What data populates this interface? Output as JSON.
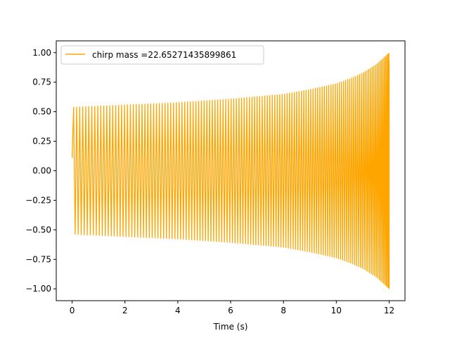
{
  "chart_data": {
    "type": "line",
    "title": "",
    "xlabel": "Time (s)",
    "ylabel": "",
    "xlim": [
      -0.6,
      12.6
    ],
    "ylim": [
      -1.1,
      1.1
    ],
    "x_ticks": [
      0,
      2,
      4,
      6,
      8,
      10,
      12
    ],
    "x_tick_labels": [
      "0",
      "2",
      "4",
      "6",
      "8",
      "10",
      "12"
    ],
    "y_ticks": [
      -1.0,
      -0.75,
      -0.5,
      -0.25,
      0.0,
      0.25,
      0.5,
      0.75,
      1.0
    ],
    "y_tick_labels": [
      "−1.00",
      "−0.75",
      "−0.50",
      "−0.25",
      "0.00",
      "0.25",
      "0.50",
      "0.75",
      "1.00"
    ],
    "grid": false,
    "legend_position": "top-left",
    "series": [
      {
        "name": "chirp mass =22.65271435899861",
        "color": "#ffa500",
        "envelope": {
          "t": [
            0,
            2,
            4,
            6,
            8,
            9,
            10,
            10.5,
            11,
            11.5,
            11.8,
            12.0
          ],
          "amplitude": [
            0.54,
            0.56,
            0.58,
            0.61,
            0.65,
            0.69,
            0.74,
            0.78,
            0.83,
            0.9,
            0.96,
            1.0
          ]
        },
        "t_start": 0.0,
        "t_end": 12.0,
        "start_value": 0.11,
        "end_value": 0.93,
        "cycles_approx": 130
      }
    ]
  }
}
